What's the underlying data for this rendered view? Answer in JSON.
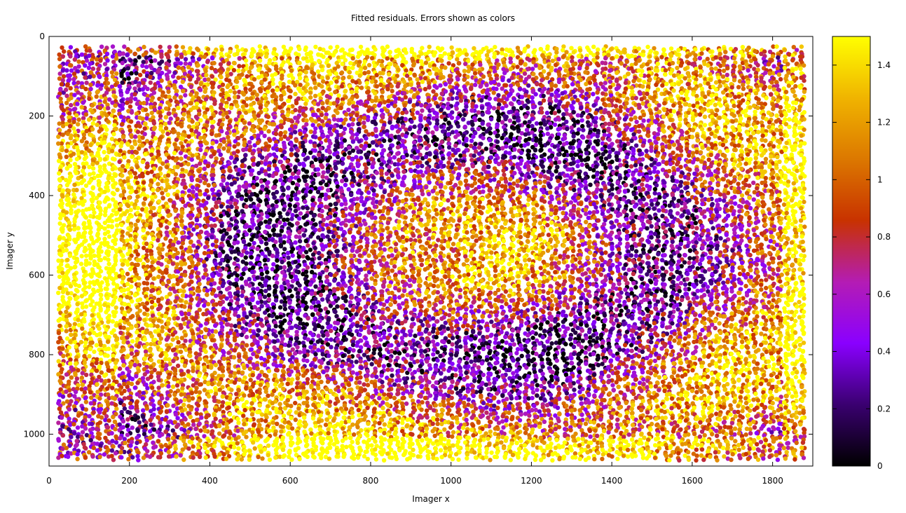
{
  "chart_data": {
    "type": "scatter",
    "title": "Fitted residuals. Errors shown as colors",
    "xlabel": "Imager x",
    "ylabel": "Imager y",
    "xlim": [
      0,
      1900
    ],
    "ylim": [
      0,
      1080
    ],
    "y_reversed": true,
    "x_ticks": [
      0,
      200,
      400,
      600,
      800,
      1000,
      1200,
      1400,
      1600,
      1800
    ],
    "y_ticks": [
      0,
      200,
      400,
      600,
      800,
      1000
    ],
    "colorbar": {
      "range": [
        0,
        1.5
      ],
      "ticks": [
        0,
        0.2,
        0.4,
        0.6,
        0.8,
        1,
        1.2,
        1.4
      ],
      "colormap": [
        "#000000",
        "#3a0070",
        "#8a00ff",
        "#b41cb4",
        "#c83200",
        "#dc7800",
        "#f0b400",
        "#ffff00"
      ]
    },
    "grid": false,
    "series_description": "Dense grid of residual points spanning x 30–1880 and y 30–1050, colored by residual error magnitude (0–1.5)"
  }
}
